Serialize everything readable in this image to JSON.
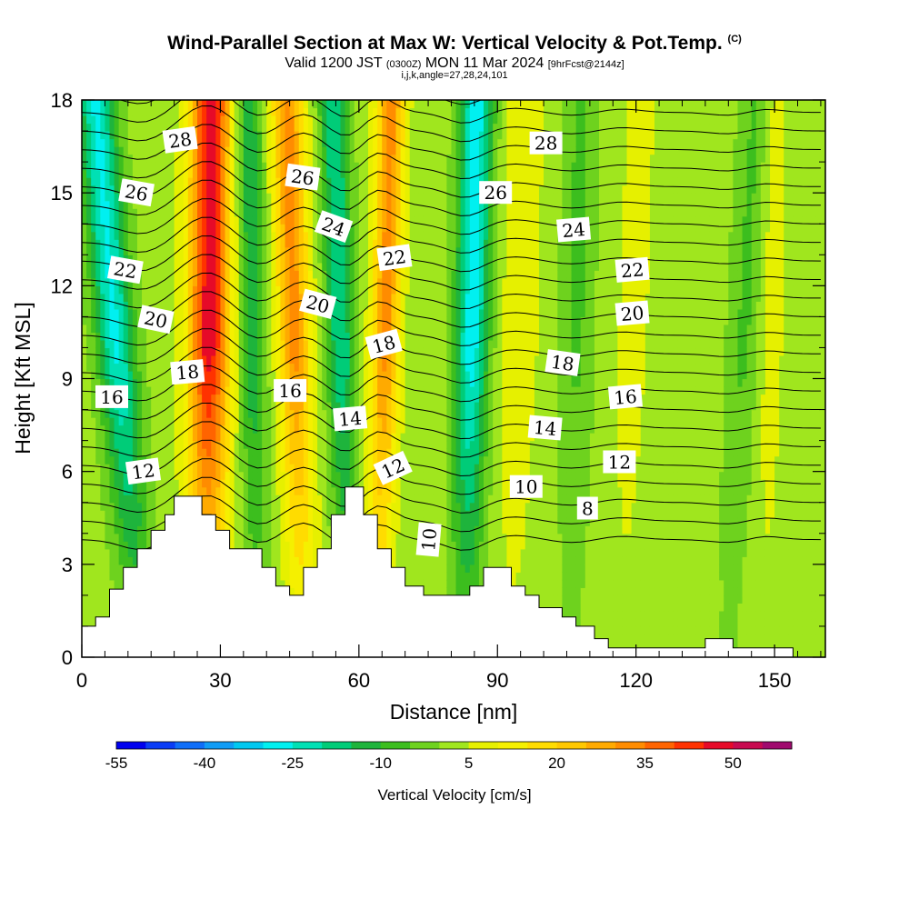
{
  "chart_data": {
    "type": "heatmap",
    "title": "Wind-Parallel Section at Max W: Vertical Velocity & Pot.Temp.",
    "title_mark": "(C)",
    "subtitle_pre": "Valid 1200 JST",
    "subtitle_utc": "(0300Z)",
    "subtitle_post": "MON 11 Mar 2024",
    "subtitle_fcst": "[9hrFcst@2144z]",
    "meta": "i,j,k,angle=27,28,24,101",
    "xlabel": "Distance [nm]",
    "ylabel": "Height [Kft MSL]",
    "xlim": [
      0,
      161
    ],
    "ylim": [
      0,
      18
    ],
    "x_ticks": [
      0,
      30,
      60,
      90,
      120,
      150
    ],
    "y_ticks": [
      0,
      3,
      6,
      9,
      12,
      15,
      18
    ],
    "colorbar": {
      "label": "Vertical Velocity [cm/s]",
      "levels": [
        -55,
        -50,
        -45,
        -40,
        -35,
        -30,
        -25,
        -20,
        -15,
        -10,
        -5,
        0,
        5,
        10,
        15,
        20,
        25,
        30,
        35,
        40,
        45,
        50,
        55,
        60
      ],
      "tick_labels": [
        "-55",
        "-40",
        "-25",
        "-10",
        "5",
        "20",
        "35",
        "50"
      ],
      "colors": [
        "#0000ee",
        "#0a3cf5",
        "#0f6ef8",
        "#109cf5",
        "#00c8f0",
        "#00f0f0",
        "#00e0b4",
        "#00cc78",
        "#1eb43c",
        "#3cbe1e",
        "#6ed21e",
        "#a0e61e",
        "#e6f000",
        "#f5f000",
        "#ffdc00",
        "#ffc800",
        "#ffaa00",
        "#ff8c00",
        "#ff6400",
        "#ff3200",
        "#e60a28",
        "#c80a50",
        "#a00a6e",
        "#640a82"
      ]
    },
    "contour_labels": [
      {
        "text": "28",
        "x": 21.3,
        "y": 16.7,
        "angle": -8
      },
      {
        "text": "28",
        "x": 100.5,
        "y": 16.6,
        "angle": 0
      },
      {
        "text": "26",
        "x": 11.8,
        "y": 15.0,
        "angle": 10
      },
      {
        "text": "26",
        "x": 47.8,
        "y": 15.5,
        "angle": 8
      },
      {
        "text": "26",
        "x": 89.6,
        "y": 15.0,
        "angle": 0
      },
      {
        "text": "24",
        "x": 54.5,
        "y": 13.9,
        "angle": 20
      },
      {
        "text": "24",
        "x": 106.5,
        "y": 13.8,
        "angle": -5
      },
      {
        "text": "22",
        "x": 9.4,
        "y": 12.5,
        "angle": 10
      },
      {
        "text": "22",
        "x": 67.7,
        "y": 12.9,
        "angle": -8
      },
      {
        "text": "22",
        "x": 119.2,
        "y": 12.5,
        "angle": -5
      },
      {
        "text": "20",
        "x": 16.0,
        "y": 10.9,
        "angle": 12
      },
      {
        "text": "20",
        "x": 51.1,
        "y": 11.4,
        "angle": 15
      },
      {
        "text": "20",
        "x": 119.2,
        "y": 11.1,
        "angle": -5
      },
      {
        "text": "18",
        "x": 22.9,
        "y": 9.2,
        "angle": -5
      },
      {
        "text": "18",
        "x": 65.4,
        "y": 10.1,
        "angle": -15
      },
      {
        "text": "18",
        "x": 104.1,
        "y": 9.5,
        "angle": 8
      },
      {
        "text": "16",
        "x": 6.5,
        "y": 8.4,
        "angle": 0
      },
      {
        "text": "16",
        "x": 45.1,
        "y": 8.6,
        "angle": 0
      },
      {
        "text": "16",
        "x": 117.7,
        "y": 8.4,
        "angle": -5
      },
      {
        "text": "14",
        "x": 58.1,
        "y": 7.7,
        "angle": -5
      },
      {
        "text": "14",
        "x": 100.3,
        "y": 7.4,
        "angle": 5
      },
      {
        "text": "12",
        "x": 13.3,
        "y": 6.0,
        "angle": -8
      },
      {
        "text": "12",
        "x": 67.4,
        "y": 6.1,
        "angle": -25
      },
      {
        "text": "12",
        "x": 116.4,
        "y": 6.3,
        "angle": 0
      },
      {
        "text": "10",
        "x": 96.2,
        "y": 5.5,
        "angle": 0
      },
      {
        "text": "10",
        "x": 75.2,
        "y": 3.8,
        "angle": -85
      },
      {
        "text": "8",
        "x": 109.5,
        "y": 4.8,
        "angle": 0
      }
    ],
    "terrain": [
      [
        0,
        1.0
      ],
      [
        3,
        1.0
      ],
      [
        3,
        1.3
      ],
      [
        6,
        1.3
      ],
      [
        6,
        2.2
      ],
      [
        9,
        2.2
      ],
      [
        9,
        2.9
      ],
      [
        12,
        2.9
      ],
      [
        12,
        3.5
      ],
      [
        15,
        3.5
      ],
      [
        15,
        4.1
      ],
      [
        18,
        4.1
      ],
      [
        18,
        4.6
      ],
      [
        20,
        4.6
      ],
      [
        20,
        5.2
      ],
      [
        26,
        5.2
      ],
      [
        26,
        4.6
      ],
      [
        29,
        4.6
      ],
      [
        29,
        4.1
      ],
      [
        32,
        4.1
      ],
      [
        32,
        3.5
      ],
      [
        39,
        3.5
      ],
      [
        39,
        2.9
      ],
      [
        42,
        2.9
      ],
      [
        42,
        2.3
      ],
      [
        45,
        2.3
      ],
      [
        45,
        2.0
      ],
      [
        48,
        2.0
      ],
      [
        48,
        2.9
      ],
      [
        51,
        2.9
      ],
      [
        51,
        3.5
      ],
      [
        54,
        3.5
      ],
      [
        54,
        4.6
      ],
      [
        57,
        4.6
      ],
      [
        57,
        5.5
      ],
      [
        61,
        5.5
      ],
      [
        61,
        4.6
      ],
      [
        64,
        4.6
      ],
      [
        64,
        3.5
      ],
      [
        67,
        3.5
      ],
      [
        67,
        2.9
      ],
      [
        70,
        2.9
      ],
      [
        70,
        2.3
      ],
      [
        74,
        2.3
      ],
      [
        74,
        2.0
      ],
      [
        84,
        2.0
      ],
      [
        84,
        2.3
      ],
      [
        87,
        2.3
      ],
      [
        87,
        2.9
      ],
      [
        93,
        2.9
      ],
      [
        93,
        2.3
      ],
      [
        96,
        2.3
      ],
      [
        96,
        2.0
      ],
      [
        99,
        2.0
      ],
      [
        99,
        1.6
      ],
      [
        104,
        1.6
      ],
      [
        104,
        1.3
      ],
      [
        107,
        1.3
      ],
      [
        107,
        1.0
      ],
      [
        111,
        1.0
      ],
      [
        111,
        0.6
      ],
      [
        114,
        0.6
      ],
      [
        114,
        0.3
      ],
      [
        135,
        0.3
      ],
      [
        135,
        0.6
      ],
      [
        141,
        0.6
      ],
      [
        141,
        0.3
      ],
      [
        154,
        0.3
      ],
      [
        154,
        0.0
      ],
      [
        161,
        0.0
      ]
    ],
    "updraft_columns": [
      {
        "x": 27.0,
        "x_top": 28.0,
        "w": 4.5,
        "w_max": 46
      },
      {
        "x": 48.0,
        "x_top": 44.5,
        "w": 3.5,
        "w_max": 30
      },
      {
        "x": 64.0,
        "x_top": 67.0,
        "w": 3.0,
        "w_max": 30
      },
      {
        "x": 93.0,
        "x_top": 96.0,
        "w": 4.0,
        "w_max": 8
      },
      {
        "x": 117.0,
        "x_top": 121.0,
        "w": 3.5,
        "w_max": 6
      },
      {
        "x": 148.0,
        "x_top": 150.0,
        "w": 3.0,
        "w_max": 6
      }
    ],
    "downdraft_columns": [
      {
        "x": 13.0,
        "x_top": 3.0,
        "w": 4.0,
        "w_max": -28
      },
      {
        "x": 38.0,
        "x_top": 36.0,
        "w": 3.0,
        "w_max": -16
      },
      {
        "x": 58.0,
        "x_top": 54.5,
        "w": 3.0,
        "w_max": -22
      },
      {
        "x": 83.0,
        "x_top": 85.5,
        "w": 3.5,
        "w_max": -30
      },
      {
        "x": 106.0,
        "x_top": 108.0,
        "w": 3.5,
        "w_max": -8
      },
      {
        "x": 140.0,
        "x_top": 146.0,
        "w": 3.5,
        "w_max": -8
      }
    ]
  }
}
